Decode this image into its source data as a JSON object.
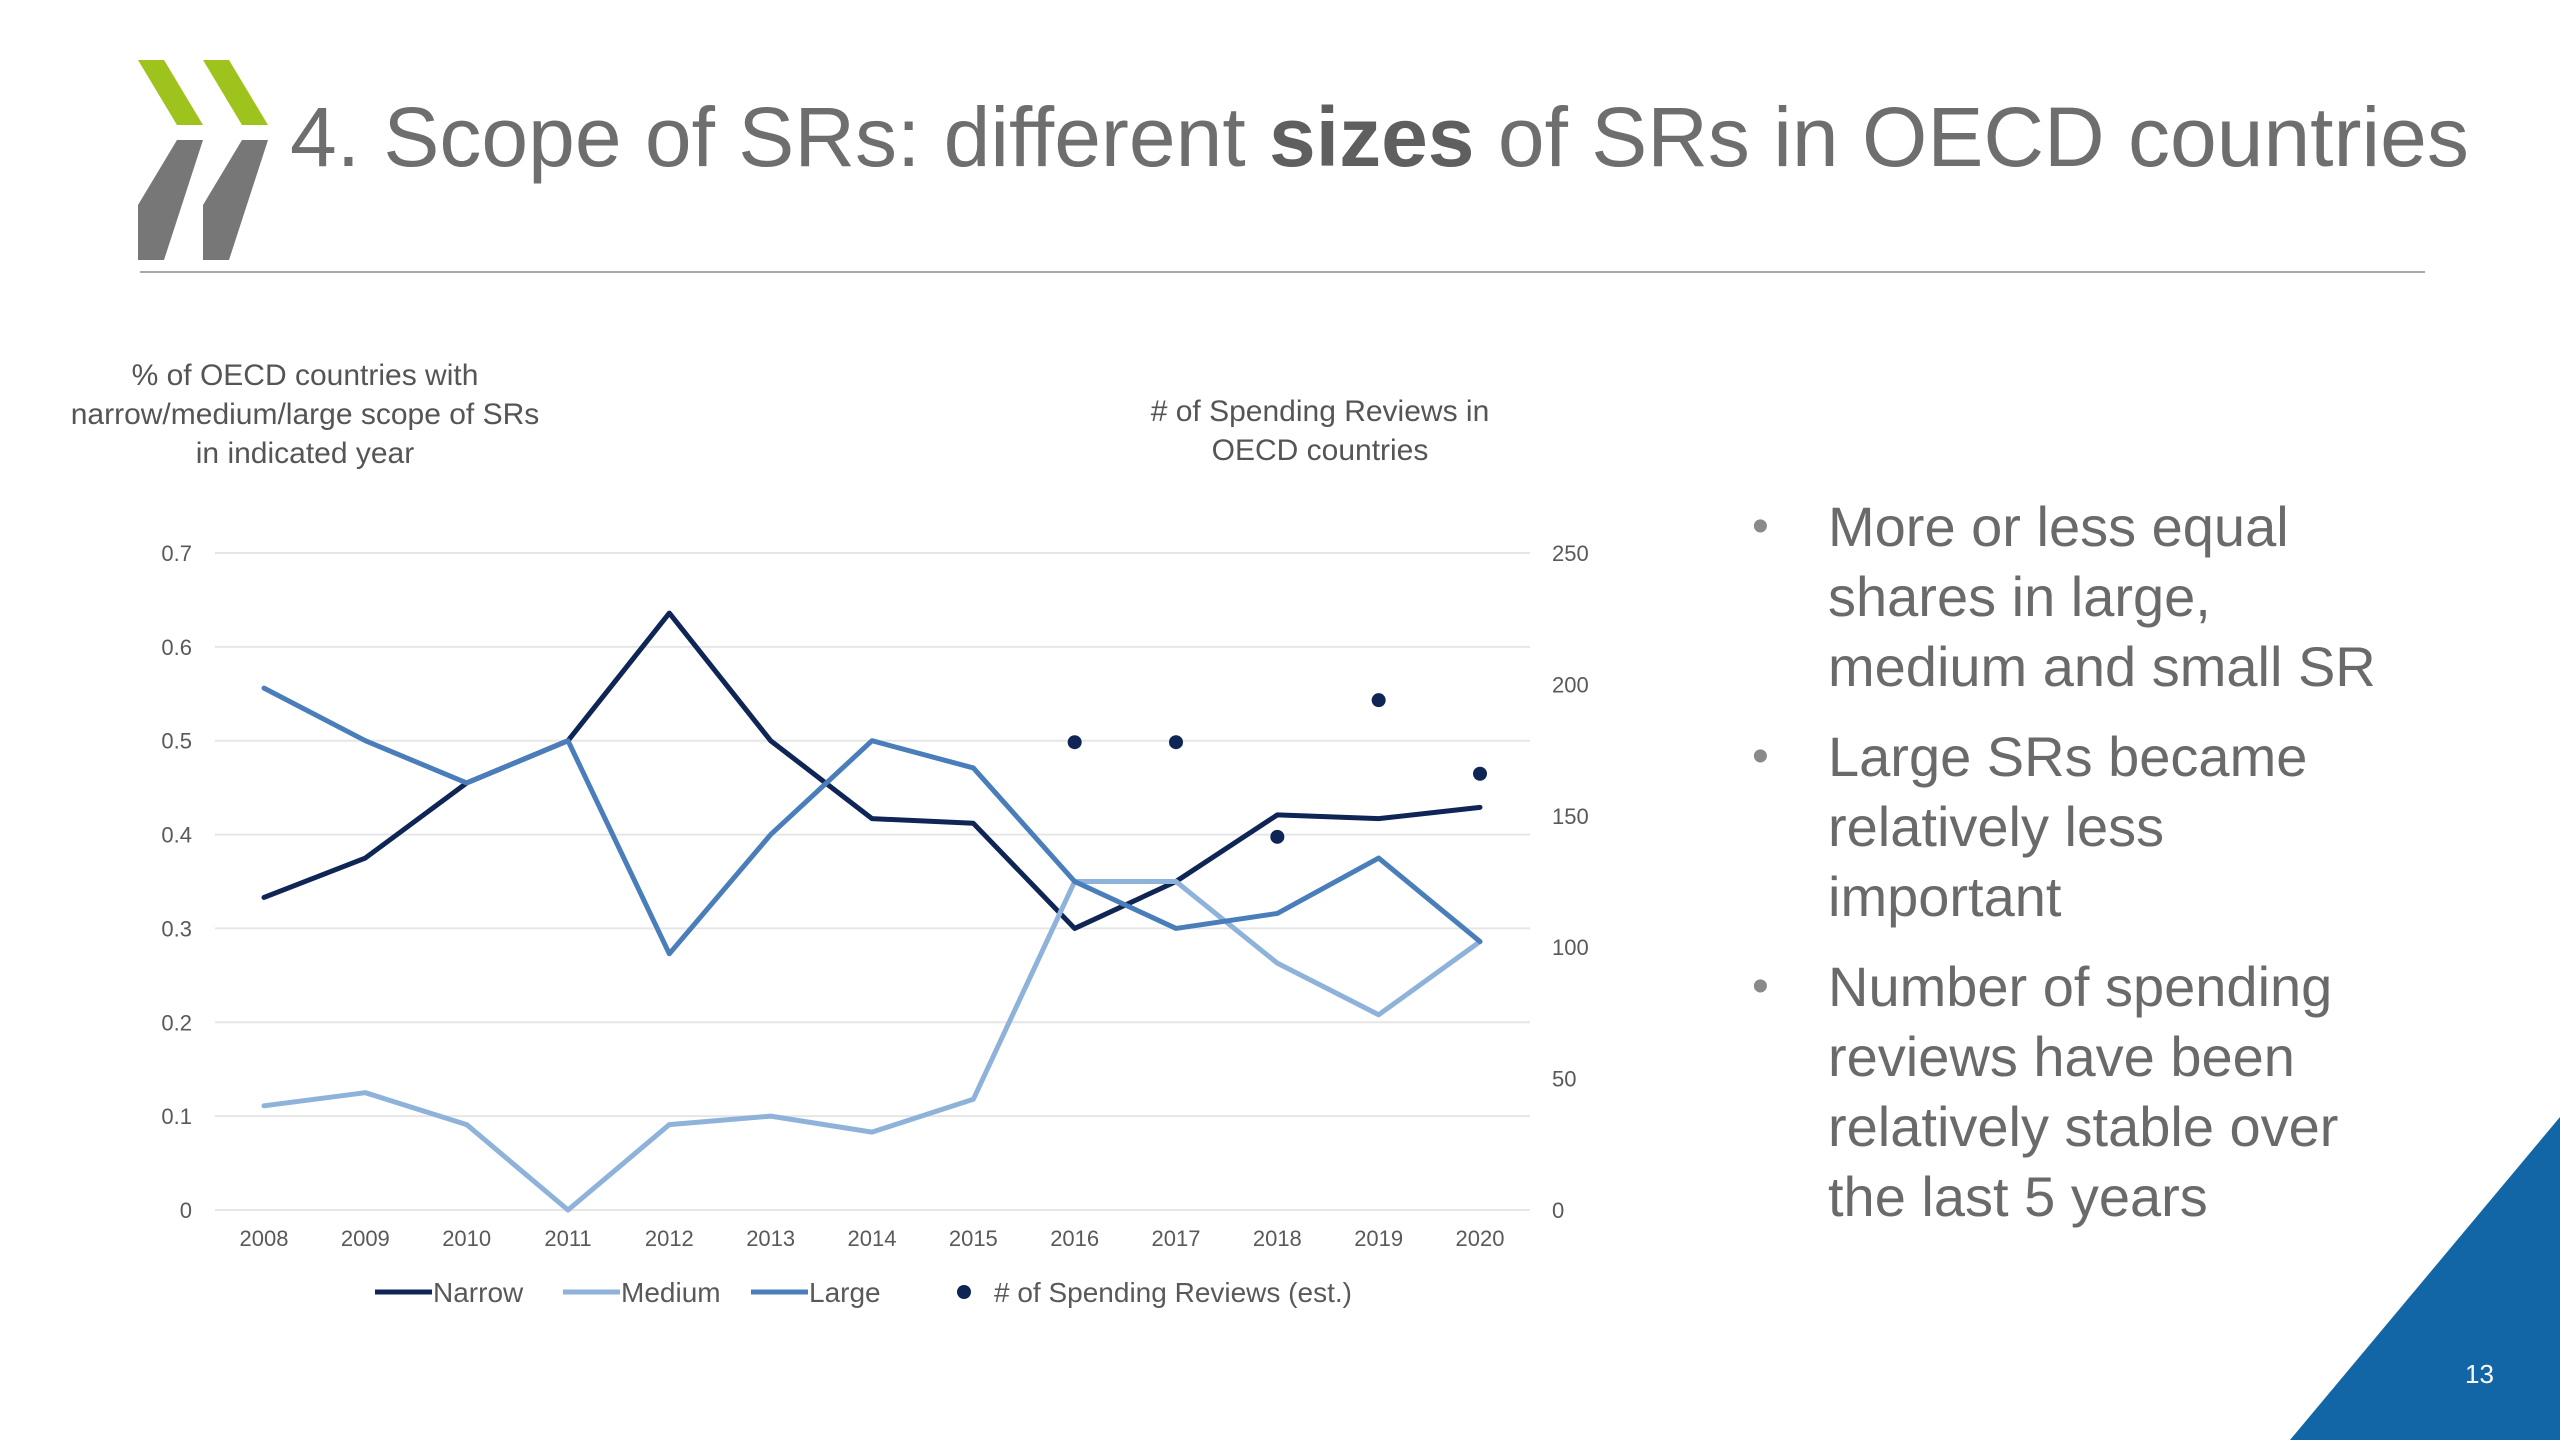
{
  "slide": {
    "title_prefix": "4. Scope of SRs: different ",
    "title_bold": "sizes",
    "title_suffix": " of SRs in OECD countries",
    "page_number": "13",
    "brand_colors": {
      "green": "#9dc31c",
      "grey": "#777777",
      "blue": "#1366a6"
    },
    "logo_icon": "oecd-chevron-logo-icon"
  },
  "bullets": [
    {
      "line1": "More or less equal",
      "line2": "shares in large,",
      "line3": "medium and small SR"
    },
    {
      "line1": "Large SRs became",
      "line2": "relatively less",
      "line3": "important"
    },
    {
      "line1": "Number of spending",
      "line2": "reviews have been",
      "line3": "relatively stable over",
      "line4": "the last 5 years"
    }
  ],
  "chart_data": {
    "type": "line",
    "left_axis_title": [
      "% of OECD countries with",
      "narrow/medium/large scope of SRs",
      "in indicated year"
    ],
    "right_axis_title": [
      "# of Spending Reviews in",
      "OECD countries"
    ],
    "categories": [
      "2008",
      "2009",
      "2010",
      "2011",
      "2012",
      "2013",
      "2014",
      "2015",
      "2016",
      "2017",
      "2018",
      "2019",
      "2020"
    ],
    "y_left": {
      "min": 0,
      "max": 0.7,
      "ticks": [
        "0",
        "0.1",
        "0.2",
        "0.3",
        "0.4",
        "0.5",
        "0.6",
        "0.7"
      ]
    },
    "y_right": {
      "min": 0,
      "max": 250,
      "ticks": [
        "0",
        "50",
        "100",
        "150",
        "200",
        "250"
      ]
    },
    "grid": true,
    "legend_position": "bottom",
    "series": [
      {
        "name": "Narrow",
        "axis": "left",
        "kind": "line",
        "color": "#0f2556",
        "values": [
          0.333,
          0.375,
          0.455,
          0.5,
          0.636,
          0.5,
          0.417,
          0.412,
          0.3,
          0.35,
          0.421,
          0.417,
          0.429
        ]
      },
      {
        "name": "Medium",
        "axis": "left",
        "kind": "line",
        "color": "#8fb2db",
        "values": [
          0.111,
          0.125,
          0.091,
          0.0,
          0.091,
          0.1,
          0.083,
          0.118,
          0.35,
          0.35,
          0.263,
          0.208,
          0.286
        ]
      },
      {
        "name": "Large",
        "axis": "left",
        "kind": "line",
        "color": "#4a7eba",
        "values": [
          0.556,
          0.5,
          0.455,
          0.5,
          0.273,
          0.4,
          0.5,
          0.471,
          0.35,
          0.3,
          0.316,
          0.375,
          0.286
        ]
      },
      {
        "name": "# of Spending Reviews (est.)",
        "axis": "right",
        "kind": "scatter",
        "color": "#0f2556",
        "values": [
          null,
          null,
          null,
          null,
          null,
          null,
          null,
          null,
          178,
          178,
          142,
          194,
          166
        ]
      }
    ]
  }
}
